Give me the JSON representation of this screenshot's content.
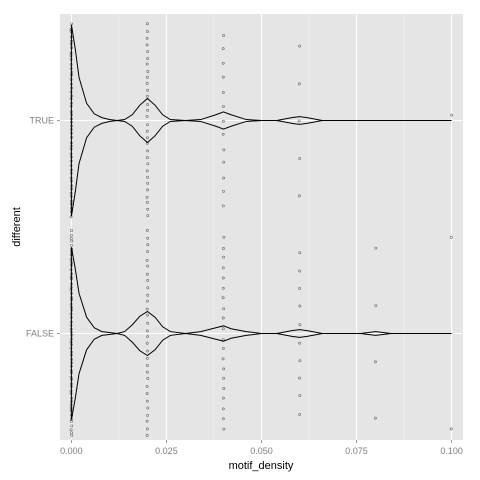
{
  "colors": {
    "panel": "#e5e5e5",
    "grid_major": "#ffffff",
    "grid_minor": "#f2f2f2",
    "outline": "#000000",
    "point": "#000000"
  },
  "chart_data": {
    "type": "violin",
    "orientation": "horizontal",
    "xlabel": "motif_density",
    "ylabel": "different",
    "xlim": [
      -0.003,
      0.103
    ],
    "x_ticks": [
      0.0,
      0.025,
      0.05,
      0.075,
      0.1
    ],
    "x_tick_labels": [
      "0.000",
      "0.025",
      "0.050",
      "0.075",
      "0.100"
    ],
    "categories": [
      "TRUE",
      "FALSE"
    ],
    "grid": true,
    "series": [
      {
        "category": "TRUE",
        "density_profile": [
          [
            0.0,
            1.0
          ],
          [
            0.001,
            0.75
          ],
          [
            0.002,
            0.45
          ],
          [
            0.004,
            0.18
          ],
          [
            0.006,
            0.07
          ],
          [
            0.008,
            0.03
          ],
          [
            0.01,
            0.01
          ],
          [
            0.012,
            0.0
          ],
          [
            0.014,
            0.01
          ],
          [
            0.016,
            0.06
          ],
          [
            0.018,
            0.16
          ],
          [
            0.02,
            0.23
          ],
          [
            0.022,
            0.16
          ],
          [
            0.024,
            0.06
          ],
          [
            0.026,
            0.01
          ],
          [
            0.03,
            0.0
          ],
          [
            0.034,
            0.01
          ],
          [
            0.038,
            0.06
          ],
          [
            0.04,
            0.09
          ],
          [
            0.042,
            0.06
          ],
          [
            0.046,
            0.01
          ],
          [
            0.05,
            0.0
          ],
          [
            0.054,
            0.0
          ],
          [
            0.058,
            0.03
          ],
          [
            0.06,
            0.04
          ],
          [
            0.062,
            0.03
          ],
          [
            0.066,
            0.0
          ],
          [
            0.1,
            0.0
          ]
        ],
        "point_groups": [
          {
            "x": 0.0,
            "count": 50,
            "spread": 0.45
          },
          {
            "x": 0.02,
            "count": 30,
            "spread": 0.45
          },
          {
            "x": 0.04,
            "count": 13,
            "spread": 0.4
          },
          {
            "x": 0.06,
            "count": 5,
            "spread": 0.35
          },
          {
            "x": 0.1,
            "count": 1,
            "spread": 0.05
          }
        ]
      },
      {
        "category": "FALSE",
        "density_profile": [
          [
            0.0,
            0.9
          ],
          [
            0.001,
            0.68
          ],
          [
            0.002,
            0.42
          ],
          [
            0.004,
            0.17
          ],
          [
            0.006,
            0.06
          ],
          [
            0.008,
            0.02
          ],
          [
            0.01,
            0.01
          ],
          [
            0.012,
            0.0
          ],
          [
            0.014,
            0.02
          ],
          [
            0.016,
            0.09
          ],
          [
            0.018,
            0.18
          ],
          [
            0.02,
            0.23
          ],
          [
            0.022,
            0.17
          ],
          [
            0.024,
            0.07
          ],
          [
            0.026,
            0.02
          ],
          [
            0.03,
            0.0
          ],
          [
            0.034,
            0.02
          ],
          [
            0.038,
            0.06
          ],
          [
            0.04,
            0.08
          ],
          [
            0.042,
            0.05
          ],
          [
            0.046,
            0.02
          ],
          [
            0.05,
            0.0
          ],
          [
            0.054,
            0.0
          ],
          [
            0.058,
            0.03
          ],
          [
            0.06,
            0.04
          ],
          [
            0.062,
            0.03
          ],
          [
            0.066,
            0.0
          ],
          [
            0.076,
            0.0
          ],
          [
            0.08,
            0.02
          ],
          [
            0.084,
            0.0
          ],
          [
            0.1,
            0.0
          ]
        ],
        "point_groups": [
          {
            "x": 0.0,
            "count": 60,
            "spread": 0.48
          },
          {
            "x": 0.02,
            "count": 30,
            "spread": 0.48
          },
          {
            "x": 0.04,
            "count": 20,
            "spread": 0.45
          },
          {
            "x": 0.06,
            "count": 10,
            "spread": 0.38
          },
          {
            "x": 0.08,
            "count": 4,
            "spread": 0.4
          },
          {
            "x": 0.1,
            "count": 2,
            "spread": 0.45
          }
        ]
      }
    ]
  }
}
